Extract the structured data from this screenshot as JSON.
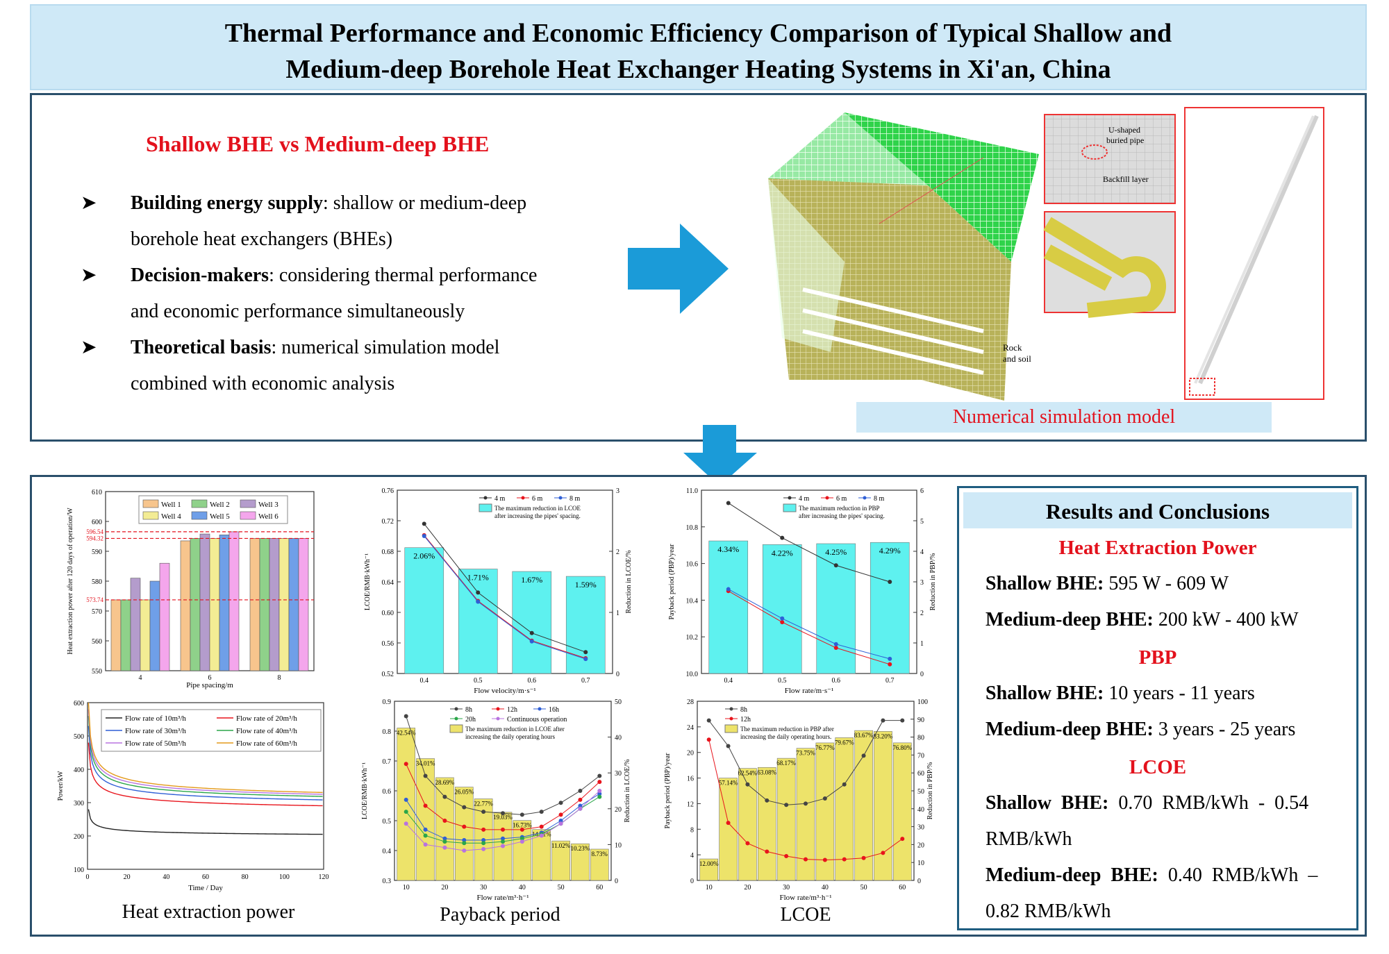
{
  "title": {
    "line1": "Thermal Performance and Economic Efficiency Comparison of Typical Shallow and",
    "line2": "Medium-deep Borehole Heat Exchanger Heating Systems in Xi'an, China"
  },
  "intro": {
    "heading": "Shallow BHE vs Medium-deep BHE",
    "bullets": [
      {
        "term": "Building energy supply",
        "text": ": shallow or medium-deep",
        "cont": "borehole heat exchangers (BHEs)"
      },
      {
        "term": "Decision-makers",
        "text": ": considering thermal performance",
        "cont": "and economic performance simultaneously"
      },
      {
        "term": "Theoretical basis",
        "text": ": numerical simulation model",
        "cont": "combined with economic analysis"
      }
    ]
  },
  "model": {
    "caption": "Numerical simulation model",
    "labels": {
      "pipe": [
        "U-shaped",
        "buried pipe"
      ],
      "backfill": "Backfill layer",
      "rock": [
        "Rock",
        "and soil"
      ]
    }
  },
  "captions": {
    "left": "Heat extraction power",
    "middle": "Payback period",
    "right": "LCOE"
  },
  "results": {
    "title": "Results and Conclusions",
    "sections": [
      {
        "heading": "Heat Extraction Power",
        "lines": [
          {
            "label": "Shallow BHE:",
            "value": " 595 W - 609 W"
          },
          {
            "label": "Medium-deep BHE:",
            "value": " 200 kW - 400 kW"
          }
        ]
      },
      {
        "heading": "PBP",
        "lines": [
          {
            "label": "Shallow BHE:",
            "value": " 10 years - 11 years"
          },
          {
            "label": "Medium-deep BHE:",
            "value": " 3 years - 25 years"
          }
        ]
      },
      {
        "heading": "LCOE",
        "lines": [
          {
            "label": "Shallow  BHE:",
            "value": "  0.70  RMB/kWh  -  0.54",
            "cont": "RMB/kWh"
          },
          {
            "label": "Medium-deep  BHE:",
            "value": "  0.40  RMB/kWh  –",
            "cont": "0.82 RMB/kWh"
          }
        ]
      }
    ]
  },
  "chart_data": [
    {
      "id": "shallow-power-bar",
      "type": "bar",
      "xlabel": "Pipe spacing/m",
      "ylabel": "Heat extraction power after 120 days of operation/W",
      "categories": [
        "4",
        "6",
        "8"
      ],
      "ylim": [
        550,
        610
      ],
      "yticks": [
        550,
        560,
        570,
        580,
        590,
        600,
        610
      ],
      "series": [
        {
          "name": "Well 1",
          "color": "#f7c58d",
          "values": [
            573.74,
            593.5,
            594.32
          ]
        },
        {
          "name": "Well 2",
          "color": "#8fd18a",
          "values": [
            573.74,
            594.32,
            594.32
          ]
        },
        {
          "name": "Well 3",
          "color": "#b49ccc",
          "values": [
            581,
            595.8,
            594.32
          ]
        },
        {
          "name": "Well 4",
          "color": "#f3ec94",
          "values": [
            573.74,
            594.32,
            594.32
          ]
        },
        {
          "name": "Well 5",
          "color": "#6f9fe8",
          "values": [
            580,
            595.5,
            594.32
          ]
        },
        {
          "name": "Well 6",
          "color": "#f4a6ec",
          "values": [
            586,
            596.54,
            594.32
          ]
        }
      ],
      "reference_lines": [
        "596.54",
        "594.32",
        "573.74"
      ],
      "legend": "top"
    },
    {
      "id": "shallow-lcoe",
      "type": "bar+line",
      "xlabel": "Flow velocity/m·s⁻¹",
      "ylabel": "LCOE/RMB·kWh⁻¹",
      "ylabel_right": "Reduction in LCOE/%",
      "x": [
        "0.4",
        "0.5",
        "0.6",
        "0.7"
      ],
      "ylim": [
        0.52,
        0.76
      ],
      "yticks": [
        "0.52",
        "0.56",
        "0.60",
        "0.64",
        "0.68",
        "0.72",
        "0.76"
      ],
      "ylim_right": [
        0,
        3
      ],
      "yticks_right": [
        "0",
        "1",
        "2",
        "3"
      ],
      "bars": {
        "name": "The maximum reduction in LCOE after increasing the pipes' spacing.",
        "values": [
          2.06,
          1.71,
          1.67,
          1.59
        ],
        "labels": [
          "2.06%",
          "1.71%",
          "1.67%",
          "1.59%"
        ]
      },
      "series": [
        {
          "name": "4 m",
          "color": "#333333",
          "values": [
            0.716,
            0.626,
            0.573,
            0.548
          ]
        },
        {
          "name": "6 m",
          "color": "#e8141c",
          "values": [
            0.701,
            0.615,
            0.563,
            0.54
          ]
        },
        {
          "name": "8 m",
          "color": "#2f5fd6",
          "values": [
            0.7,
            0.614,
            0.562,
            0.539
          ]
        }
      ]
    },
    {
      "id": "shallow-pbp",
      "type": "bar+line",
      "xlabel": "Flow rate/m·s⁻¹",
      "ylabel": "Payback period (PBP)/year",
      "ylabel_right": "Reduction in PBP/%",
      "x": [
        "0.4",
        "0.5",
        "0.6",
        "0.7"
      ],
      "ylim": [
        10.0,
        11.0
      ],
      "yticks": [
        "10.0",
        "10.2",
        "10.4",
        "10.6",
        "10.8",
        "11.0"
      ],
      "ylim_right": [
        0,
        6
      ],
      "yticks_right": [
        "0",
        "1",
        "2",
        "3",
        "4",
        "5",
        "6"
      ],
      "bars": {
        "name": "The maximum reduction in PBP after increasing the pipes' spacing.",
        "values": [
          4.34,
          4.22,
          4.25,
          4.29
        ],
        "labels": [
          "4.34%",
          "4.22%",
          "4.25%",
          "4.29%"
        ]
      },
      "series": [
        {
          "name": "4 m",
          "color": "#333333",
          "values": [
            10.93,
            10.74,
            10.59,
            10.5
          ]
        },
        {
          "name": "6 m",
          "color": "#e8141c",
          "values": [
            10.45,
            10.28,
            10.14,
            10.05
          ]
        },
        {
          "name": "8 m",
          "color": "#2f5fd6",
          "values": [
            10.46,
            10.3,
            10.16,
            10.08
          ]
        }
      ]
    },
    {
      "id": "deep-power",
      "type": "line",
      "xlabel": "Time / Day",
      "ylabel": "Power/kW",
      "xlim": [
        0,
        120
      ],
      "xticks": [
        "0",
        "20",
        "40",
        "60",
        "80",
        "100",
        "120"
      ],
      "ylim": [
        100,
        600
      ],
      "yticks": [
        "100",
        "200",
        "300",
        "400",
        "500",
        "600"
      ],
      "series": [
        {
          "name": "Flow rate of 10m³/h",
          "color": "#222222",
          "y0": 280,
          "yend": 192
        },
        {
          "name": "Flow rate of 20m³/h",
          "color": "#e8141c",
          "y0": 480,
          "yend": 258
        },
        {
          "name": "Flow rate of 30m³/h",
          "color": "#2f5fd6",
          "y0": 530,
          "yend": 270
        },
        {
          "name": "Flow rate of 40m³/h",
          "color": "#2ba64a",
          "y0": 560,
          "yend": 277
        },
        {
          "name": "Flow rate of 50m³/h",
          "color": "#b873e0",
          "y0": 580,
          "yend": 281
        },
        {
          "name": "Flow rate of 60m³/h",
          "color": "#e39a1b",
          "y0": 600,
          "yend": 284
        }
      ]
    },
    {
      "id": "deep-lcoe",
      "type": "bar+line",
      "xlabel": "Flow rate/m³·h⁻¹",
      "ylabel": "LCOE/RMB·kWh⁻¹",
      "ylabel_right": "Reduction in LCOE/%",
      "x": [
        10,
        15,
        20,
        25,
        30,
        35,
        40,
        45,
        50,
        55,
        60
      ],
      "xticks": [
        "10",
        "20",
        "30",
        "40",
        "50",
        "60"
      ],
      "ylim": [
        0.3,
        0.9
      ],
      "yticks": [
        "0.3",
        "0.4",
        "0.5",
        "0.6",
        "0.7",
        "0.8",
        "0.9"
      ],
      "ylim_right": [
        0,
        50
      ],
      "yticks_right": [
        "0",
        "10",
        "20",
        "30",
        "40",
        "50"
      ],
      "bars": {
        "name": "The maximum reduction in LCOE after increasing the daily operating hours",
        "values": [
          42.54,
          34.01,
          28.69,
          26.05,
          22.77,
          19.03,
          16.73,
          14.21,
          11.02,
          10.23,
          8.73
        ],
        "labels": [
          "42.54%",
          "34.01%",
          "28.69%",
          "26.05%",
          "22.77%",
          "19.03%",
          "16.73%",
          "14.21%",
          "11.02%",
          "10.23%",
          "8.73%"
        ]
      },
      "series": [
        {
          "name": "8h",
          "color": "#444444",
          "values": [
            0.85,
            0.65,
            0.58,
            0.545,
            0.53,
            0.525,
            0.52,
            0.53,
            0.56,
            0.6,
            0.65
          ]
        },
        {
          "name": "12h",
          "color": "#e8141c",
          "values": [
            0.69,
            0.55,
            0.5,
            0.48,
            0.47,
            0.47,
            0.47,
            0.48,
            0.52,
            0.57,
            0.63
          ]
        },
        {
          "name": "16h",
          "color": "#2f5fd6",
          "values": [
            0.57,
            0.47,
            0.44,
            0.435,
            0.435,
            0.44,
            0.445,
            0.46,
            0.5,
            0.55,
            0.59
          ]
        },
        {
          "name": "20h",
          "color": "#2ba64a",
          "values": [
            0.53,
            0.45,
            0.43,
            0.425,
            0.425,
            0.43,
            0.44,
            0.455,
            0.49,
            0.54,
            0.58
          ]
        },
        {
          "name": "Continuous operation",
          "color": "#b873e0",
          "values": [
            0.49,
            0.42,
            0.41,
            0.4,
            0.405,
            0.415,
            0.43,
            0.45,
            0.49,
            0.54,
            0.6
          ]
        }
      ]
    },
    {
      "id": "deep-pbp",
      "type": "bar+line",
      "xlabel": "Flow rate/m³·h⁻¹",
      "ylabel": "Payback period (PBP)/year",
      "ylabel_right": "Reduction in PBP/%",
      "x": [
        10,
        15,
        20,
        25,
        30,
        35,
        40,
        45,
        50,
        55,
        60
      ],
      "xticks": [
        "10",
        "20",
        "30",
        "40",
        "50",
        "60"
      ],
      "ylim": [
        0,
        28
      ],
      "yticks": [
        "0",
        "4",
        "8",
        "12",
        "16",
        "20",
        "24",
        "28"
      ],
      "ylim_right": [
        0,
        100
      ],
      "yticks_right": [
        "0",
        "10",
        "20",
        "30",
        "40",
        "50",
        "60",
        "70",
        "80",
        "90",
        "100"
      ],
      "bars": {
        "name": "The maximum reduction in PBP after increasing the daily operating hours.",
        "values": [
          12.0,
          57.14,
          62.54,
          63.08,
          68.17,
          73.75,
          76.77,
          79.67,
          83.67,
          83.2,
          76.8
        ],
        "labels": [
          "12.00%",
          "57.14%",
          "62.54%",
          "63.08%",
          "68.17%",
          "73.75%",
          "76.77%",
          "79.67%",
          "83.67%",
          "83.20%",
          "76.80%"
        ]
      },
      "series": [
        {
          "name": "8h",
          "color": "#444444",
          "values": [
            25,
            21,
            15,
            12.5,
            11.8,
            12,
            12.8,
            15,
            19.5,
            25,
            25
          ]
        },
        {
          "name": "12h",
          "color": "#e8141c",
          "values": [
            22,
            9,
            5.8,
            4.5,
            3.8,
            3.3,
            3.2,
            3.3,
            3.5,
            4.3,
            6.5
          ]
        }
      ]
    }
  ]
}
